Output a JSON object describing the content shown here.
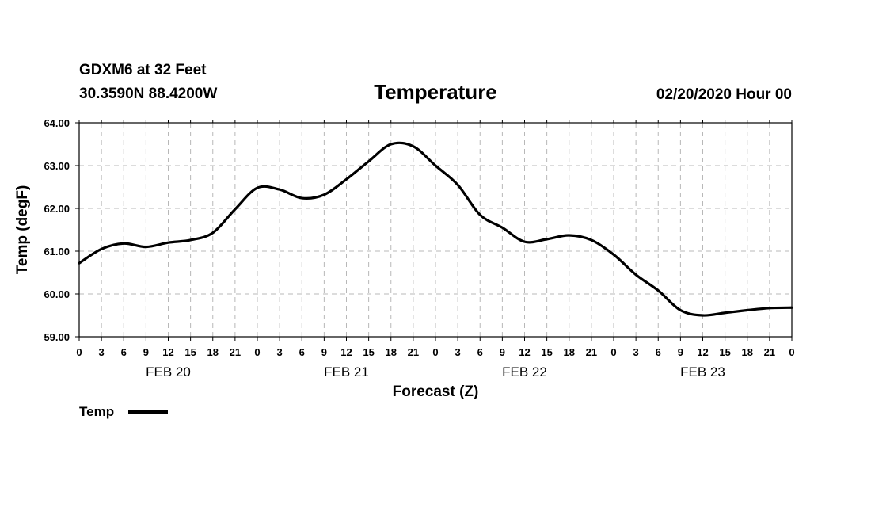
{
  "header": {
    "station": "GDXM6 at 32 Feet",
    "coords": "30.3590N 88.4200W",
    "datetime": "02/20/2020 Hour 00"
  },
  "chart_data": {
    "type": "line",
    "title": "Temperature",
    "xlabel": "Forecast (Z)",
    "ylabel": "Temp (degF)",
    "ylim": [
      59.0,
      64.0
    ],
    "yticks": [
      59.0,
      60.0,
      61.0,
      62.0,
      63.0,
      64.0
    ],
    "ytick_labels": [
      "59.00",
      "60.00",
      "61.00",
      "62.00",
      "63.00",
      "64.00"
    ],
    "x_range_hours": [
      0,
      96
    ],
    "xtick_labels": [
      "0",
      "3",
      "6",
      "9",
      "12",
      "15",
      "18",
      "21",
      "0",
      "3",
      "6",
      "9",
      "12",
      "15",
      "18",
      "21",
      "0",
      "3",
      "6",
      "9",
      "12",
      "15",
      "18",
      "21",
      "0",
      "3",
      "6",
      "9",
      "12",
      "15",
      "18",
      "21",
      "0"
    ],
    "day_labels": [
      {
        "label": "FEB 20",
        "center_hour": 12
      },
      {
        "label": "FEB 21",
        "center_hour": 36
      },
      {
        "label": "FEB 22",
        "center_hour": 60
      },
      {
        "label": "FEB 23",
        "center_hour": 84
      }
    ],
    "legend": [
      {
        "label": "Temp",
        "color": "#000000"
      }
    ],
    "legend_position": "bottom-left",
    "grid": true,
    "series": [
      {
        "name": "Temp",
        "color": "#000000",
        "x": [
          0,
          3,
          6,
          9,
          12,
          15,
          18,
          21,
          24,
          27,
          30,
          33,
          36,
          39,
          42,
          45,
          48,
          51,
          54,
          57,
          60,
          63,
          66,
          69,
          72,
          75,
          78,
          81,
          84,
          87,
          90,
          93,
          96
        ],
        "values": [
          60.72,
          61.05,
          61.18,
          61.1,
          61.2,
          61.26,
          61.43,
          61.98,
          62.48,
          62.44,
          62.24,
          62.32,
          62.68,
          63.1,
          63.5,
          63.45,
          63.0,
          62.55,
          61.85,
          61.55,
          61.22,
          61.28,
          61.37,
          61.26,
          60.92,
          60.45,
          60.08,
          59.62,
          59.5,
          59.56,
          59.62,
          59.67,
          59.68
        ]
      }
    ]
  }
}
